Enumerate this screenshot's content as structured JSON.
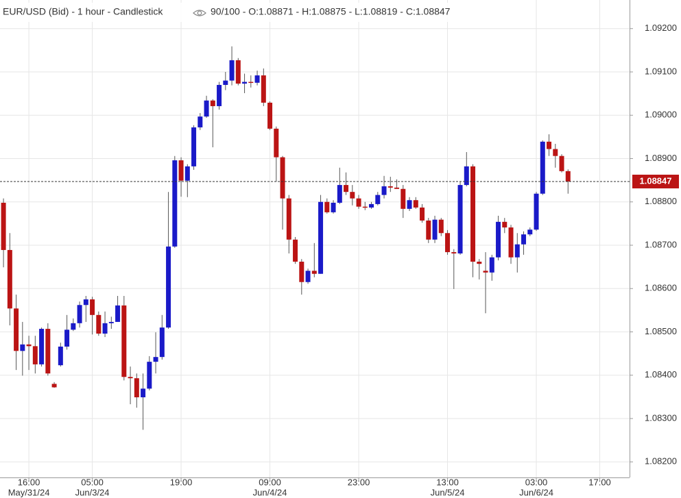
{
  "chart_data": {
    "type": "candlestick",
    "title": "EUR/USD (Bid) - 1 hour - Candlestick",
    "subtitle": "90/100 - O:1.08871 - H:1.08875 - L:1.08819 - C:1.08847",
    "up_color": "#1a1ac8",
    "down_color": "#bb1414",
    "grid": true,
    "open": [
      1.08798,
      1.08689,
      1.08554,
      1.08456,
      1.08471,
      1.08467,
      1.08425,
      1.08507,
      1.0838,
      1.08423,
      1.08466,
      1.08505,
      1.0852,
      1.08562,
      1.08575,
      1.08539,
      1.08496,
      1.0852,
      1.08523,
      1.08561,
      1.08396,
      1.08393,
      1.08349,
      1.08369,
      1.08431,
      1.08442,
      1.0851,
      1.08697,
      1.08896,
      1.08849,
      1.08882,
      1.08972,
      1.08997,
      1.09034,
      1.09021,
      1.0907,
      1.0908,
      1.09127,
      1.09073,
      1.09077,
      1.09075,
      1.09092,
      1.09029,
      1.08969,
      1.08903,
      1.08808,
      1.08713,
      1.08662,
      1.08615,
      1.08641,
      1.08634,
      1.088,
      1.08776,
      1.08798,
      1.08839,
      1.08823,
      1.08808,
      1.08789,
      1.08787,
      1.08795,
      1.08816,
      1.08836,
      1.08833,
      1.0883,
      1.08784,
      1.08804,
      1.08787,
      1.08757,
      1.08713,
      1.08759,
      1.08728,
      1.08684,
      1.08681,
      1.08839,
      1.08882,
      1.08662,
      1.08641,
      1.08637,
      1.08672,
      1.08754,
      1.08741,
      1.08672,
      1.08702,
      1.08725,
      1.08736,
      1.08819,
      1.08939,
      1.08922,
      1.08906,
      1.08871
    ],
    "high": [
      1.08808,
      1.08728,
      1.08586,
      1.08523,
      1.08491,
      1.08491,
      1.0851,
      1.0852,
      1.08384,
      1.08475,
      1.08539,
      1.08531,
      1.0857,
      1.08583,
      1.08581,
      1.08547,
      1.08547,
      1.08535,
      1.08583,
      1.08583,
      1.0842,
      1.08404,
      1.08404,
      1.08444,
      1.08499,
      1.08539,
      1.08823,
      1.08906,
      1.08903,
      1.08887,
      1.08977,
      1.09005,
      1.09045,
      1.09037,
      1.09077,
      1.091,
      1.09159,
      1.09132,
      1.09096,
      1.09092,
      1.09103,
      1.09108,
      1.09032,
      1.08974,
      1.08906,
      1.08816,
      1.08719,
      1.08668,
      1.08646,
      1.08705,
      1.08816,
      1.08808,
      1.08804,
      1.08879,
      1.08868,
      1.08839,
      1.08816,
      1.088,
      1.088,
      1.08823,
      1.0886,
      1.08858,
      1.08852,
      1.08839,
      1.08811,
      1.08811,
      1.08795,
      1.08763,
      1.08768,
      1.08763,
      1.08735,
      1.08691,
      1.08847,
      1.08915,
      1.08887,
      1.08668,
      1.08684,
      1.08678,
      1.08768,
      1.08763,
      1.08747,
      1.08728,
      1.08732,
      1.08741,
      1.08823,
      1.08942,
      1.08956,
      1.08934,
      1.0891,
      1.08875
    ],
    "low": [
      1.08649,
      1.08515,
      1.08412,
      1.08399,
      1.08412,
      1.08404,
      1.0842,
      1.08399,
      1.08371,
      1.0842,
      1.08459,
      1.08502,
      1.0851,
      1.08523,
      1.08494,
      1.08491,
      1.08488,
      1.08507,
      1.08523,
      1.08388,
      1.08333,
      1.08325,
      1.08274,
      1.08365,
      1.08404,
      1.08436,
      1.08507,
      1.08694,
      1.08812,
      1.08811,
      1.08874,
      1.08966,
      1.08994,
      1.08926,
      1.09013,
      1.09058,
      1.09069,
      1.09069,
      1.09051,
      1.09064,
      1.09069,
      1.09021,
      1.08966,
      1.08847,
      1.08736,
      1.08681,
      1.08657,
      1.08586,
      1.08611,
      1.08626,
      1.08634,
      1.08773,
      1.08773,
      1.08795,
      1.08816,
      1.08792,
      1.08784,
      1.08781,
      1.08784,
      1.08792,
      1.08808,
      1.08823,
      1.0883,
      1.08763,
      1.08779,
      1.08784,
      1.08752,
      1.08705,
      1.08705,
      1.08721,
      1.08678,
      1.08599,
      1.08678,
      1.08836,
      1.08626,
      1.08621,
      1.08543,
      1.08618,
      1.08665,
      1.08728,
      1.08657,
      1.08637,
      1.08678,
      1.08721,
      1.08733,
      1.08816,
      1.08906,
      1.08879,
      1.08868,
      1.08819
    ],
    "close": [
      1.08689,
      1.08554,
      1.08456,
      1.08471,
      1.08467,
      1.08425,
      1.08507,
      1.08404,
      1.08372,
      1.08466,
      1.08505,
      1.0852,
      1.08562,
      1.08575,
      1.08539,
      1.08496,
      1.0852,
      1.08523,
      1.08561,
      1.08396,
      1.08393,
      1.08349,
      1.08369,
      1.08431,
      1.08442,
      1.0851,
      1.08697,
      1.08896,
      1.08849,
      1.08882,
      1.08972,
      1.08997,
      1.09034,
      1.09021,
      1.0907,
      1.0908,
      1.09127,
      1.09073,
      1.09077,
      1.09075,
      1.09092,
      1.09029,
      1.08969,
      1.08903,
      1.08808,
      1.08713,
      1.08662,
      1.08615,
      1.08641,
      1.08634,
      1.088,
      1.08776,
      1.08798,
      1.08839,
      1.08823,
      1.08808,
      1.08789,
      1.08787,
      1.08795,
      1.08816,
      1.08836,
      1.08833,
      1.0883,
      1.08784,
      1.08804,
      1.08787,
      1.08757,
      1.08713,
      1.08759,
      1.08728,
      1.08684,
      1.08681,
      1.08839,
      1.08882,
      1.08662,
      1.08657,
      1.08637,
      1.08672,
      1.08754,
      1.08741,
      1.08672,
      1.08702,
      1.08725,
      1.08736,
      1.08819,
      1.08939,
      1.08922,
      1.08906,
      1.08871,
      1.08847
    ],
    "last_price": 1.08847,
    "xlim": [
      -0.55,
      98.7
    ],
    "xticks": [
      {
        "value": 4,
        "label": "16:00"
      },
      {
        "value": 14,
        "label": "05:00"
      },
      {
        "value": 28,
        "label": "19:00"
      },
      {
        "value": 42,
        "label": "09:00"
      },
      {
        "value": 56,
        "label": "23:00"
      },
      {
        "value": 70,
        "label": "13:00"
      },
      {
        "value": 84,
        "label": "03:00"
      },
      {
        "value": 94,
        "label": "17:00"
      }
    ],
    "xtick_dates": [
      {
        "value": 4,
        "label": "May/31/24"
      },
      {
        "value": 14,
        "label": "Jun/3/24"
      },
      {
        "value": 42,
        "label": "Jun/4/24"
      },
      {
        "value": 70,
        "label": "Jun/5/24"
      },
      {
        "value": 84,
        "label": "Jun/6/24"
      }
    ],
    "ylim": [
      1.08164,
      1.09266
    ],
    "yticks": [
      {
        "value": 1.082,
        "label": "1.08200"
      },
      {
        "value": 1.083,
        "label": "1.08300"
      },
      {
        "value": 1.084,
        "label": "1.08400"
      },
      {
        "value": 1.085,
        "label": "1.08500"
      },
      {
        "value": 1.086,
        "label": "1.08600"
      },
      {
        "value": 1.087,
        "label": "1.08700"
      },
      {
        "value": 1.088,
        "label": "1.08800"
      },
      {
        "value": 1.089,
        "label": "1.08900"
      },
      {
        "value": 1.09,
        "label": "1.09000"
      },
      {
        "value": 1.091,
        "label": "1.09100"
      },
      {
        "value": 1.092,
        "label": "1.09200"
      }
    ]
  }
}
